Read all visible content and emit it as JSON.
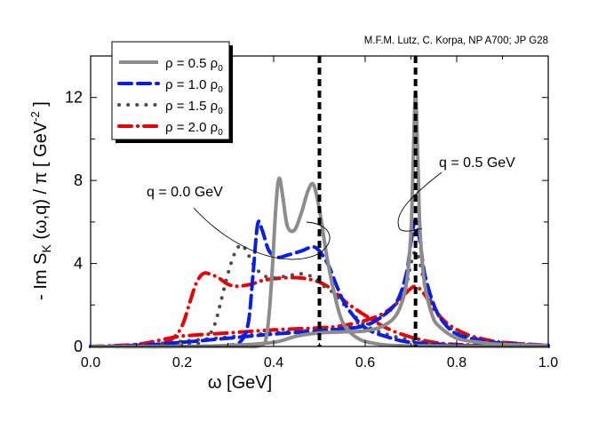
{
  "chart_data": {
    "type": "line",
    "citation": "M.F.M. Lutz, C. Korpa, NP A700; JP G28",
    "xlabel": "ω [GeV]",
    "ylabel": {
      "prefix": "- Im S",
      "sub": "K",
      "mid": " (ω,q) / π  [ GeV",
      "sup": "-2",
      "suffix": " ]"
    },
    "xlim": [
      0,
      1.0
    ],
    "ylim": [
      0,
      14
    ],
    "xticks": [
      "0.0",
      "0.2",
      "0.4",
      "0.6",
      "0.8",
      "1.0"
    ],
    "xtick_values": [
      0,
      0.2,
      0.4,
      0.6,
      0.8,
      1.0
    ],
    "yticks": [
      "0",
      "4",
      "8",
      "12"
    ],
    "ytick_values": [
      0,
      4,
      8,
      12
    ],
    "vlines": [
      0.5,
      0.71
    ],
    "annotations": [
      "q = 0.0 GeV",
      "q = 0.5 GeV"
    ],
    "legend": {
      "placement": "top-left",
      "entries": [
        {
          "label": "ρ = 0.5 ρ",
          "sub": "0"
        },
        {
          "label": "ρ = 1.0 ρ",
          "sub": "0"
        },
        {
          "label": "ρ = 1.5 ρ",
          "sub": "0"
        },
        {
          "label": "ρ = 2.0 ρ",
          "sub": "0"
        }
      ]
    },
    "series": [
      {
        "name": "ρ = 0.5 ρ0",
        "color": "#8c8c8c",
        "style": "solid",
        "q0": {
          "x": [
            0,
            0.3,
            0.37,
            0.385,
            0.395,
            0.405,
            0.412,
            0.42,
            0.43,
            0.445,
            0.46,
            0.475,
            0.487,
            0.5,
            0.515,
            0.53,
            0.55,
            0.58,
            0.62,
            0.7,
            1.0
          ],
          "y": [
            0,
            0,
            0.05,
            0.6,
            3,
            6.8,
            8.1,
            7.2,
            5.8,
            5.6,
            6.4,
            7.5,
            7.8,
            6.6,
            4.5,
            2.8,
            1.2,
            0.45,
            0.15,
            0.03,
            0
          ]
        },
        "q05": {
          "x": [
            0,
            0.2,
            0.3,
            0.4,
            0.45,
            0.5,
            0.55,
            0.6,
            0.64,
            0.67,
            0.69,
            0.7,
            0.705,
            0.71,
            0.715,
            0.72,
            0.73,
            0.745,
            0.76,
            0.8,
            0.85,
            0.9,
            1.0
          ],
          "y": [
            0,
            0,
            0.05,
            0.2,
            0.5,
            0.65,
            0.7,
            0.75,
            1.0,
            1.6,
            3.0,
            5.5,
            9,
            12.2,
            9,
            5.5,
            3.0,
            1.6,
            1.0,
            0.4,
            0.2,
            0.1,
            0.05
          ]
        }
      },
      {
        "name": "ρ = 1.0 ρ0",
        "color": "#0a1ee6",
        "style": "dash",
        "q0": {
          "x": [
            0,
            0.2,
            0.3,
            0.33,
            0.345,
            0.355,
            0.365,
            0.375,
            0.39,
            0.41,
            0.43,
            0.46,
            0.485,
            0.5,
            0.52,
            0.54,
            0.56,
            0.6,
            0.65,
            0.7,
            0.8,
            1.0
          ],
          "y": [
            0,
            0,
            0.05,
            0.3,
            1.2,
            3.5,
            5.9,
            5.6,
            4.6,
            4.3,
            4.4,
            4.6,
            4.8,
            4.6,
            3.9,
            2.8,
            1.9,
            0.9,
            0.45,
            0.2,
            0.05,
            0
          ]
        },
        "q05": {
          "x": [
            0,
            0.1,
            0.2,
            0.3,
            0.4,
            0.5,
            0.55,
            0.6,
            0.64,
            0.67,
            0.69,
            0.7,
            0.71,
            0.72,
            0.73,
            0.75,
            0.77,
            0.8,
            0.85,
            0.9,
            1.0
          ],
          "y": [
            0,
            0.05,
            0.2,
            0.4,
            0.6,
            0.75,
            0.85,
            1.0,
            1.5,
            2.2,
            3.5,
            5.0,
            6.1,
            5.0,
            3.5,
            2.0,
            1.2,
            0.6,
            0.3,
            0.15,
            0.05
          ]
        }
      },
      {
        "name": "ρ = 1.5 ρ0",
        "color": "#4d4d4d",
        "style": "dot",
        "q0": {
          "x": [
            0,
            0.15,
            0.22,
            0.25,
            0.27,
            0.285,
            0.3,
            0.315,
            0.33,
            0.345,
            0.36,
            0.38,
            0.4,
            0.43,
            0.46,
            0.49,
            0.51,
            0.53,
            0.55,
            0.58,
            0.62,
            0.7,
            0.8,
            1.0
          ],
          "y": [
            0,
            0,
            0.1,
            0.3,
            1.0,
            2.2,
            3.5,
            4.5,
            4.9,
            4.4,
            3.8,
            3.4,
            3.3,
            3.4,
            3.5,
            3.3,
            2.9,
            2.6,
            2.1,
            1.4,
            0.8,
            0.3,
            0.08,
            0
          ]
        },
        "q05": {
          "x": [
            0,
            0.1,
            0.2,
            0.3,
            0.4,
            0.5,
            0.55,
            0.6,
            0.64,
            0.67,
            0.69,
            0.7,
            0.71,
            0.72,
            0.73,
            0.75,
            0.77,
            0.8,
            0.85,
            0.9,
            1.0
          ],
          "y": [
            0,
            0.05,
            0.25,
            0.45,
            0.65,
            0.8,
            0.9,
            1.05,
            1.5,
            2.1,
            3.0,
            4.0,
            4.6,
            4.0,
            3.0,
            1.9,
            1.2,
            0.7,
            0.35,
            0.2,
            0.05
          ]
        }
      },
      {
        "name": "ρ = 2.0 ρ0",
        "color": "#e60000",
        "style": "dashdot",
        "q0": {
          "x": [
            0,
            0.1,
            0.15,
            0.18,
            0.2,
            0.215,
            0.23,
            0.245,
            0.26,
            0.28,
            0.3,
            0.32,
            0.35,
            0.38,
            0.42,
            0.46,
            0.5,
            0.53,
            0.56,
            0.6,
            0.65,
            0.7,
            0.75,
            0.8,
            0.9,
            1.0
          ],
          "y": [
            0,
            0,
            0.1,
            0.4,
            1.0,
            2.0,
            3.0,
            3.5,
            3.5,
            3.3,
            3.0,
            2.9,
            3.0,
            3.2,
            3.3,
            3.3,
            3.1,
            2.7,
            2.1,
            1.5,
            0.85,
            0.45,
            0.2,
            0.1,
            0.03,
            0
          ]
        },
        "q05": {
          "x": [
            0,
            0.1,
            0.15,
            0.2,
            0.3,
            0.4,
            0.5,
            0.55,
            0.6,
            0.64,
            0.67,
            0.69,
            0.71,
            0.73,
            0.75,
            0.78,
            0.82,
            0.86,
            0.9,
            1.0
          ],
          "y": [
            0,
            0.1,
            0.3,
            0.5,
            0.65,
            0.8,
            0.9,
            1.0,
            1.25,
            1.6,
            2.1,
            2.6,
            2.9,
            2.5,
            1.8,
            1.1,
            0.6,
            0.35,
            0.2,
            0.05
          ]
        }
      }
    ]
  }
}
